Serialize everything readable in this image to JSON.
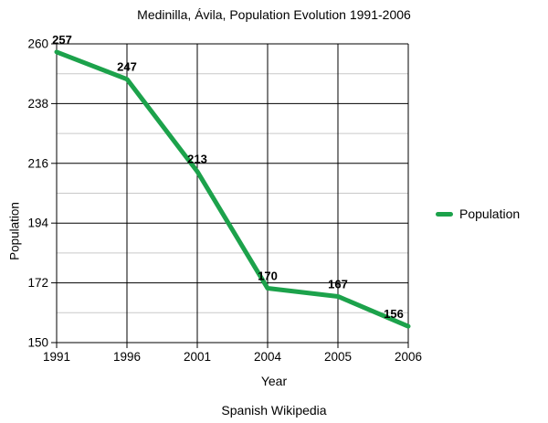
{
  "chart_data": {
    "type": "line",
    "title": "Medinilla, Ávila, Population Evolution 1991-2006",
    "xlabel": "Year",
    "ylabel": "Population",
    "source": "Spanish Wikipedia",
    "categories": [
      "1991",
      "1996",
      "2001",
      "2004",
      "2005",
      "2006"
    ],
    "series": [
      {
        "name": "Population",
        "values": [
          257,
          247,
          213,
          170,
          167,
          156
        ]
      }
    ],
    "ylim": [
      150,
      260
    ],
    "yticks": [
      150,
      172,
      194,
      216,
      238,
      260
    ],
    "yticks_minor": [
      161,
      183,
      205,
      227,
      249
    ],
    "grid": true,
    "legend_position": "right",
    "legend_label": "Population",
    "colors": {
      "line": "#1CA24B",
      "major_grid": "#000000",
      "minor_grid": "#C9C9C9",
      "text": "#000000"
    }
  }
}
